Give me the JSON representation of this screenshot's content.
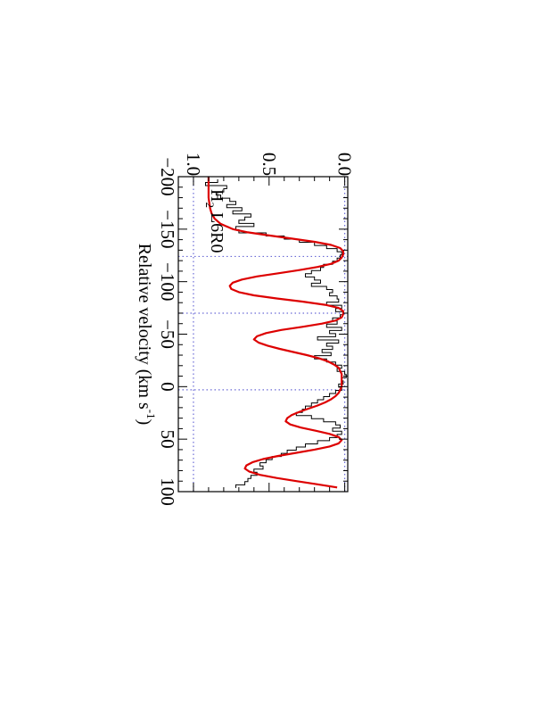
{
  "chart_data": {
    "type": "line",
    "orientation": "rotated-90-clockwise",
    "xlabel": "Relative velocity (km s",
    "xlabel_sup": "-1",
    "xlabel_close": ")",
    "ylabel": "",
    "xlim": [
      -200,
      100
    ],
    "ylim": [
      -0.02,
      1.1
    ],
    "x_ticks": [
      -200,
      -150,
      -100,
      -50,
      0,
      50,
      100
    ],
    "x_tick_labels": [
      "−200",
      "−150",
      "−100",
      "−50",
      "0",
      "50",
      "100"
    ],
    "y_ticks": [
      0.0,
      0.5,
      1.0
    ],
    "y_tick_labels": [
      "0.0",
      "0.5",
      "1.0"
    ],
    "annotation": {
      "species": "H",
      "subscript": "2",
      "transition": "L6R0"
    },
    "reference_levels": [
      0,
      1
    ],
    "component_velocities": [
      -124,
      -70,
      3
    ],
    "colors": {
      "data": "#000000",
      "model": "#dd0000",
      "reference": "#6b6bd6",
      "axes": "#000000"
    },
    "series": [
      {
        "style": "histogram",
        "x": [
          -196,
          -193,
          -190,
          -187,
          -184,
          -181,
          -178,
          -175,
          -172,
          -169,
          -166,
          -163,
          -160,
          -157,
          -154,
          -151,
          -148,
          -145,
          -142,
          -139,
          -136,
          -133,
          -130,
          -127,
          -124,
          -121,
          -118,
          -115,
          -112,
          -109,
          -106,
          -103,
          -100,
          -97,
          -94,
          -91,
          -88,
          -85,
          -82,
          -79,
          -76,
          -73,
          -70,
          -67,
          -64,
          -61,
          -58,
          -55,
          -52,
          -49,
          -46,
          -43,
          -40,
          -37,
          -34,
          -31,
          -28,
          -25,
          -22,
          -19,
          -16,
          -13,
          -10,
          -7,
          -4,
          -1,
          2,
          5,
          8,
          11,
          14,
          17,
          20,
          23,
          26,
          29,
          32,
          35,
          38,
          41,
          44,
          47,
          50,
          53,
          56,
          59,
          62,
          65,
          68,
          71,
          74,
          77,
          80,
          83,
          86,
          89,
          92,
          95
        ],
        "values": [
          0.84,
          0.92,
          0.78,
          0.8,
          0.85,
          0.82,
          0.76,
          0.72,
          0.78,
          0.68,
          0.74,
          0.62,
          0.66,
          0.7,
          0.6,
          0.72,
          0.7,
          0.52,
          0.4,
          0.3,
          0.2,
          0.12,
          0.05,
          0.02,
          0.03,
          0.05,
          0.08,
          0.14,
          0.16,
          0.22,
          0.26,
          0.2,
          0.16,
          0.22,
          0.12,
          0.08,
          0.1,
          0.05,
          0.04,
          0.12,
          0.02,
          0.06,
          0.01,
          0.03,
          0.08,
          0.05,
          0.12,
          0.02,
          0.1,
          0.06,
          0.18,
          0.04,
          0.12,
          0.08,
          0.15,
          0.09,
          0.2,
          0.12,
          0.06,
          0.02,
          0.05,
          0.0,
          -0.01,
          0.02,
          0.01,
          0.04,
          0.02,
          0.06,
          0.1,
          0.14,
          0.18,
          0.22,
          0.26,
          0.28,
          0.32,
          0.22,
          0.14,
          0.06,
          0.03,
          0.08,
          0.02,
          0.05,
          0.1,
          0.18,
          0.26,
          0.32,
          0.38,
          0.42,
          0.48,
          0.52,
          0.56,
          0.54,
          0.6,
          0.58,
          0.62,
          0.64,
          0.66,
          0.72
        ]
      },
      {
        "style": "line",
        "x": [
          -200,
          -190,
          -180,
          -170,
          -165,
          -160,
          -155,
          -150,
          -147,
          -144,
          -141,
          -138,
          -135,
          -132,
          -129,
          -126,
          -123,
          -120,
          -117,
          -114,
          -111,
          -108,
          -105,
          -102,
          -99,
          -96,
          -93,
          -90,
          -87,
          -84,
          -81,
          -78,
          -75,
          -72,
          -69,
          -66,
          -63,
          -60,
          -57,
          -54,
          -51,
          -48,
          -45,
          -42,
          -39,
          -36,
          -33,
          -30,
          -27,
          -24,
          -21,
          -18,
          -15,
          -12,
          -9,
          -6,
          -3,
          0,
          3,
          6,
          9,
          12,
          15,
          18,
          21,
          24,
          27,
          30,
          33,
          36,
          39,
          42,
          45,
          48,
          51,
          54,
          57,
          60,
          63,
          66,
          69,
          72,
          75,
          78,
          81,
          84,
          87,
          90,
          93,
          96
        ],
        "values": [
          0.9,
          0.9,
          0.9,
          0.89,
          0.88,
          0.86,
          0.82,
          0.74,
          0.64,
          0.5,
          0.35,
          0.2,
          0.09,
          0.03,
          0.01,
          0.01,
          0.02,
          0.04,
          0.09,
          0.18,
          0.3,
          0.44,
          0.58,
          0.68,
          0.74,
          0.76,
          0.75,
          0.7,
          0.6,
          0.45,
          0.28,
          0.13,
          0.04,
          0.01,
          0.01,
          0.02,
          0.06,
          0.15,
          0.28,
          0.42,
          0.52,
          0.58,
          0.6,
          0.57,
          0.51,
          0.43,
          0.34,
          0.25,
          0.17,
          0.11,
          0.07,
          0.04,
          0.03,
          0.02,
          0.02,
          0.02,
          0.02,
          0.02,
          0.03,
          0.04,
          0.06,
          0.09,
          0.13,
          0.18,
          0.24,
          0.3,
          0.35,
          0.38,
          0.39,
          0.36,
          0.29,
          0.19,
          0.1,
          0.04,
          0.02,
          0.04,
          0.1,
          0.2,
          0.32,
          0.44,
          0.54,
          0.61,
          0.65,
          0.66,
          0.63,
          0.56,
          0.45,
          0.32,
          0.18,
          0.05
        ]
      }
    ]
  }
}
